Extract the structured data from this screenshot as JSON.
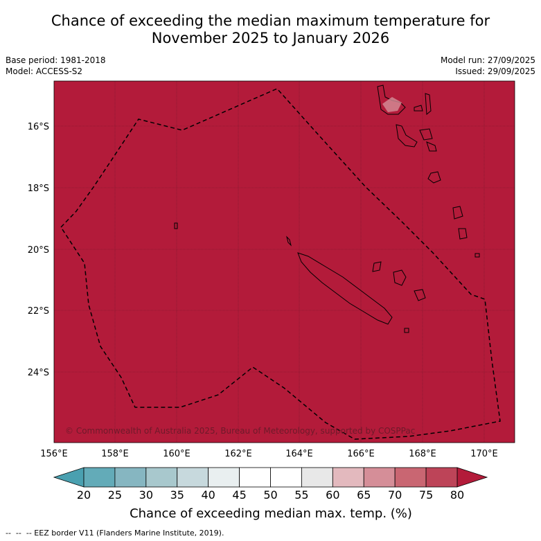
{
  "title_line1": "Chance of exceeding the median maximum temperature for",
  "title_line2": "November 2025 to January 2026",
  "meta": {
    "base_period": "Base period: 1981-2018",
    "model": "Model: ACCESS-S2",
    "model_run": "Model run: 27/09/2025",
    "issued": "Issued: 29/09/2025"
  },
  "map": {
    "fill_color": "#b31b3a",
    "lon_ticks": [
      "156°E",
      "158°E",
      "160°E",
      "162°E",
      "164°E",
      "166°E",
      "168°E",
      "170°E"
    ],
    "lat_ticks": [
      "16°S",
      "18°S",
      "20°S",
      "22°S",
      "24°S"
    ],
    "copyright": "© Commonwealth of Australia 2025, Bureau of Meteorology, supported by COSPPac"
  },
  "colorbar": {
    "label": "Chance of exceeding median max. temp. (%)",
    "ticks": [
      "20",
      "25",
      "30",
      "35",
      "40",
      "45",
      "50",
      "55",
      "60",
      "65",
      "70",
      "75",
      "80"
    ],
    "colors": [
      "#63abb8",
      "#86b6c1",
      "#a8c8cd",
      "#c7d9dd",
      "#e9eff0",
      "#ffffff",
      "#ffffff",
      "#e8e8e8",
      "#e3b9be",
      "#d58e98",
      "#c96672",
      "#bd4458"
    ],
    "under_color": "#4aa0b0",
    "over_color": "#b31b3a"
  },
  "legend": "--  --  -- EEZ border V11 (Flanders Marine Institute, 2019)."
}
